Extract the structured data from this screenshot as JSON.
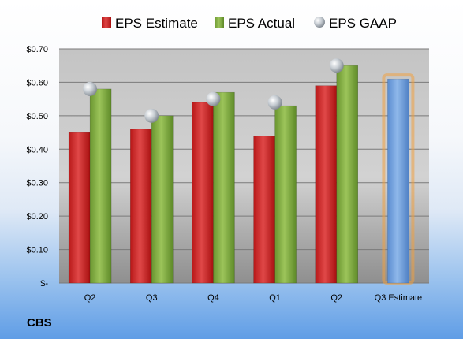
{
  "ticker": "CBS",
  "chart_data": {
    "type": "bar",
    "categories": [
      "Q2",
      "Q3",
      "Q4",
      "Q1",
      "Q2",
      "Q3 Estimate"
    ],
    "series": [
      {
        "name": "EPS Estimate",
        "kind": "bar",
        "color": "#cc2222",
        "values": [
          0.45,
          0.46,
          0.54,
          0.44,
          0.59,
          null
        ]
      },
      {
        "name": "EPS Actual",
        "kind": "bar",
        "color": "#7faa3c",
        "values": [
          0.58,
          0.5,
          0.57,
          0.53,
          0.65,
          null
        ]
      },
      {
        "name": "EPS GAAP",
        "kind": "marker",
        "color": "#c0c6cc",
        "values": [
          0.58,
          0.5,
          0.55,
          0.54,
          0.65,
          null
        ]
      }
    ],
    "forecast": {
      "category": "Q3 Estimate",
      "value": 0.61,
      "color": "#6f9fdc",
      "highlight": "#f0a040"
    },
    "ylim": [
      0,
      0.7
    ],
    "yticks": [
      {
        "value": 0,
        "label": "$-"
      },
      {
        "value": 0.1,
        "label": "$0.10"
      },
      {
        "value": 0.2,
        "label": "$0.20"
      },
      {
        "value": 0.3,
        "label": "$0.30"
      },
      {
        "value": 0.4,
        "label": "$0.40"
      },
      {
        "value": 0.5,
        "label": "$0.50"
      },
      {
        "value": 0.6,
        "label": "$0.60"
      },
      {
        "value": 0.7,
        "label": "$0.70"
      }
    ],
    "grid": true,
    "legend_position": "top"
  }
}
